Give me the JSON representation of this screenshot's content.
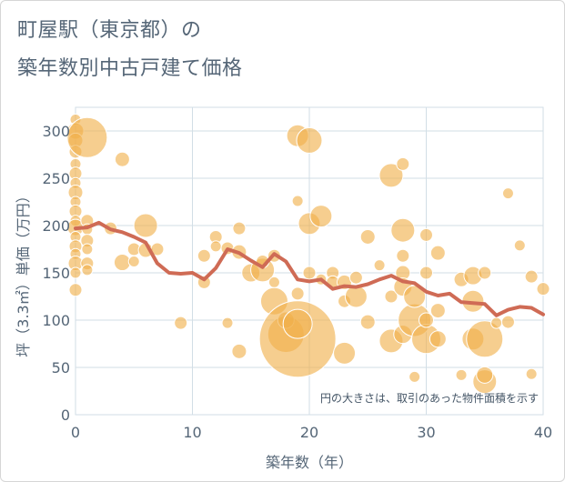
{
  "title_lines": [
    "町屋駅（東京都）の",
    "築年数別中古戸建て価格"
  ],
  "chart_data": {
    "type": "scatter",
    "xlabel": "築年数（年）",
    "ylabel": "坪（3.3㎡）単価（万円）",
    "xlim": [
      0,
      40
    ],
    "ylim": [
      0,
      325
    ],
    "xticks": [
      0,
      10,
      20,
      30,
      40
    ],
    "yticks": [
      0,
      50,
      100,
      150,
      200,
      250,
      300
    ],
    "grid": true,
    "annotation": "円の大きさは、取引のあった物件面積を示す",
    "colors": {
      "bubble": "#f0b04a",
      "line": "#cf6b55",
      "grid": "#d2dee6"
    },
    "points": [
      {
        "x": 0,
        "y": 312,
        "s": 6
      },
      {
        "x": 0,
        "y": 300,
        "s": 9
      },
      {
        "x": 0,
        "y": 290,
        "s": 8
      },
      {
        "x": 0,
        "y": 278,
        "s": 7
      },
      {
        "x": 0,
        "y": 265,
        "s": 6
      },
      {
        "x": 0,
        "y": 255,
        "s": 7
      },
      {
        "x": 0,
        "y": 245,
        "s": 6
      },
      {
        "x": 0,
        "y": 235,
        "s": 8
      },
      {
        "x": 0,
        "y": 225,
        "s": 6
      },
      {
        "x": 0,
        "y": 215,
        "s": 7
      },
      {
        "x": 0,
        "y": 205,
        "s": 6
      },
      {
        "x": 0,
        "y": 198,
        "s": 9
      },
      {
        "x": 0,
        "y": 188,
        "s": 6
      },
      {
        "x": 0,
        "y": 178,
        "s": 7
      },
      {
        "x": 0,
        "y": 170,
        "s": 6
      },
      {
        "x": 0,
        "y": 160,
        "s": 8
      },
      {
        "x": 0,
        "y": 150,
        "s": 6
      },
      {
        "x": 0,
        "y": 132,
        "s": 7
      },
      {
        "x": 1,
        "y": 293,
        "s": 22
      },
      {
        "x": 1,
        "y": 205,
        "s": 7
      },
      {
        "x": 1,
        "y": 196,
        "s": 6
      },
      {
        "x": 1,
        "y": 184,
        "s": 7
      },
      {
        "x": 1,
        "y": 175,
        "s": 6
      },
      {
        "x": 1,
        "y": 160,
        "s": 7
      },
      {
        "x": 1,
        "y": 153,
        "s": 6
      },
      {
        "x": 3,
        "y": 197,
        "s": 7
      },
      {
        "x": 4,
        "y": 270,
        "s": 8
      },
      {
        "x": 4,
        "y": 161,
        "s": 9
      },
      {
        "x": 5,
        "y": 175,
        "s": 7
      },
      {
        "x": 5,
        "y": 162,
        "s": 6
      },
      {
        "x": 6,
        "y": 200,
        "s": 13
      },
      {
        "x": 6,
        "y": 174,
        "s": 8
      },
      {
        "x": 7,
        "y": 175,
        "s": 7
      },
      {
        "x": 9,
        "y": 97,
        "s": 7
      },
      {
        "x": 11,
        "y": 168,
        "s": 7
      },
      {
        "x": 11,
        "y": 140,
        "s": 7
      },
      {
        "x": 12,
        "y": 188,
        "s": 7
      },
      {
        "x": 12,
        "y": 178,
        "s": 6
      },
      {
        "x": 13,
        "y": 97,
        "s": 6
      },
      {
        "x": 13,
        "y": 176,
        "s": 7
      },
      {
        "x": 14,
        "y": 197,
        "s": 7
      },
      {
        "x": 14,
        "y": 172,
        "s": 8
      },
      {
        "x": 14,
        "y": 67,
        "s": 8
      },
      {
        "x": 15,
        "y": 150,
        "s": 10
      },
      {
        "x": 16,
        "y": 153,
        "s": 13
      },
      {
        "x": 16,
        "y": 162,
        "s": 7
      },
      {
        "x": 17,
        "y": 168,
        "s": 7
      },
      {
        "x": 17,
        "y": 140,
        "s": 6
      },
      {
        "x": 17,
        "y": 120,
        "s": 15
      },
      {
        "x": 18,
        "y": 85,
        "s": 20
      },
      {
        "x": 18,
        "y": 100,
        "s": 9
      },
      {
        "x": 19,
        "y": 80,
        "s": 42
      },
      {
        "x": 19,
        "y": 96,
        "s": 16
      },
      {
        "x": 19,
        "y": 295,
        "s": 12
      },
      {
        "x": 19,
        "y": 226,
        "s": 6
      },
      {
        "x": 19,
        "y": 128,
        "s": 7
      },
      {
        "x": 20,
        "y": 290,
        "s": 14
      },
      {
        "x": 20,
        "y": 202,
        "s": 12
      },
      {
        "x": 20,
        "y": 150,
        "s": 7
      },
      {
        "x": 21,
        "y": 210,
        "s": 12
      },
      {
        "x": 21,
        "y": 143,
        "s": 6
      },
      {
        "x": 22,
        "y": 150,
        "s": 7
      },
      {
        "x": 22,
        "y": 140,
        "s": 7
      },
      {
        "x": 23,
        "y": 140,
        "s": 8
      },
      {
        "x": 23,
        "y": 120,
        "s": 7
      },
      {
        "x": 23,
        "y": 65,
        "s": 12
      },
      {
        "x": 24,
        "y": 125,
        "s": 12
      },
      {
        "x": 24,
        "y": 145,
        "s": 7
      },
      {
        "x": 25,
        "y": 188,
        "s": 8
      },
      {
        "x": 25,
        "y": 98,
        "s": 8
      },
      {
        "x": 26,
        "y": 158,
        "s": 6
      },
      {
        "x": 27,
        "y": 253,
        "s": 13
      },
      {
        "x": 27,
        "y": 125,
        "s": 7
      },
      {
        "x": 27,
        "y": 78,
        "s": 13
      },
      {
        "x": 28,
        "y": 265,
        "s": 7
      },
      {
        "x": 28,
        "y": 195,
        "s": 13
      },
      {
        "x": 28,
        "y": 168,
        "s": 7
      },
      {
        "x": 28,
        "y": 150,
        "s": 8
      },
      {
        "x": 28,
        "y": 135,
        "s": 10
      },
      {
        "x": 28,
        "y": 85,
        "s": 10
      },
      {
        "x": 29,
        "y": 100,
        "s": 18
      },
      {
        "x": 29,
        "y": 125,
        "s": 12
      },
      {
        "x": 29,
        "y": 40,
        "s": 6
      },
      {
        "x": 30,
        "y": 190,
        "s": 7
      },
      {
        "x": 30,
        "y": 150,
        "s": 7
      },
      {
        "x": 30,
        "y": 80,
        "s": 16
      },
      {
        "x": 30,
        "y": 100,
        "s": 8
      },
      {
        "x": 31,
        "y": 171,
        "s": 8
      },
      {
        "x": 31,
        "y": 110,
        "s": 8
      },
      {
        "x": 31,
        "y": 80,
        "s": 9
      },
      {
        "x": 33,
        "y": 143,
        "s": 8
      },
      {
        "x": 33,
        "y": 42,
        "s": 6
      },
      {
        "x": 34,
        "y": 147,
        "s": 10
      },
      {
        "x": 34,
        "y": 120,
        "s": 12
      },
      {
        "x": 34,
        "y": 80,
        "s": 12
      },
      {
        "x": 35,
        "y": 150,
        "s": 7
      },
      {
        "x": 35,
        "y": 80,
        "s": 20
      },
      {
        "x": 35,
        "y": 35,
        "s": 13
      },
      {
        "x": 35,
        "y": 42,
        "s": 9
      },
      {
        "x": 36,
        "y": 97,
        "s": 6
      },
      {
        "x": 37,
        "y": 98,
        "s": 7
      },
      {
        "x": 37,
        "y": 234,
        "s": 6
      },
      {
        "x": 38,
        "y": 179,
        "s": 6
      },
      {
        "x": 39,
        "y": 146,
        "s": 7
      },
      {
        "x": 39,
        "y": 43,
        "s": 6
      },
      {
        "x": 40,
        "y": 133,
        "s": 7
      }
    ],
    "trend": [
      {
        "x": 0,
        "y": 197
      },
      {
        "x": 1,
        "y": 198
      },
      {
        "x": 2,
        "y": 203
      },
      {
        "x": 3,
        "y": 196
      },
      {
        "x": 4,
        "y": 193
      },
      {
        "x": 5,
        "y": 188
      },
      {
        "x": 6,
        "y": 182
      },
      {
        "x": 7,
        "y": 160
      },
      {
        "x": 8,
        "y": 150
      },
      {
        "x": 9,
        "y": 149
      },
      {
        "x": 10,
        "y": 150
      },
      {
        "x": 11,
        "y": 143
      },
      {
        "x": 12,
        "y": 155
      },
      {
        "x": 13,
        "y": 175
      },
      {
        "x": 14,
        "y": 171
      },
      {
        "x": 15,
        "y": 163
      },
      {
        "x": 16,
        "y": 156
      },
      {
        "x": 17,
        "y": 170
      },
      {
        "x": 18,
        "y": 162
      },
      {
        "x": 19,
        "y": 143
      },
      {
        "x": 20,
        "y": 141
      },
      {
        "x": 21,
        "y": 143
      },
      {
        "x": 22,
        "y": 133
      },
      {
        "x": 23,
        "y": 136
      },
      {
        "x": 24,
        "y": 135
      },
      {
        "x": 25,
        "y": 138
      },
      {
        "x": 26,
        "y": 143
      },
      {
        "x": 27,
        "y": 147
      },
      {
        "x": 28,
        "y": 141
      },
      {
        "x": 29,
        "y": 139
      },
      {
        "x": 30,
        "y": 130
      },
      {
        "x": 31,
        "y": 126
      },
      {
        "x": 32,
        "y": 128
      },
      {
        "x": 33,
        "y": 119
      },
      {
        "x": 34,
        "y": 118
      },
      {
        "x": 35,
        "y": 117
      },
      {
        "x": 36,
        "y": 105
      },
      {
        "x": 37,
        "y": 111
      },
      {
        "x": 38,
        "y": 114
      },
      {
        "x": 39,
        "y": 113
      },
      {
        "x": 40,
        "y": 106
      }
    ]
  }
}
